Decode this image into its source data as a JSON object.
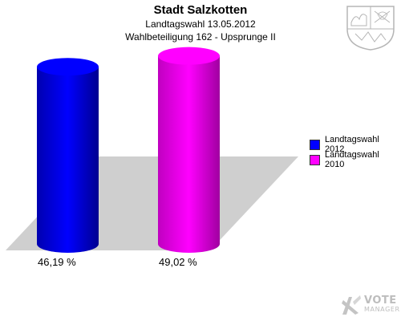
{
  "chart_data": {
    "type": "bar",
    "title": "Stadt Salzkotten",
    "subtitle": [
      "Landtagswahl 13.05.2012",
      "Wahlbeteiligung 162 - Upsprunge II"
    ],
    "categories": [
      "Landtagswahl 2012",
      "Landtagswahl 2010"
    ],
    "values": [
      46.19,
      49.02
    ],
    "value_labels": [
      "46,19 %",
      "49,02 %"
    ],
    "colors": [
      "#0000ff",
      "#ff00ff"
    ],
    "ylim": [
      0,
      50
    ],
    "grid": false,
    "legend": "right",
    "xlabel": "",
    "ylabel": ""
  },
  "legend": {
    "items": [
      {
        "label": "Landtagswahl 2012",
        "color": "#0000ff"
      },
      {
        "label": "Landtagswahl 2010",
        "color": "#ff00ff"
      }
    ]
  },
  "logo": {
    "line1": "VOTE",
    "line2": "MANAGER",
    "icon": "vote-manager-logo-icon"
  },
  "crest": {
    "icon": "nrw-coat-of-arms-icon"
  }
}
